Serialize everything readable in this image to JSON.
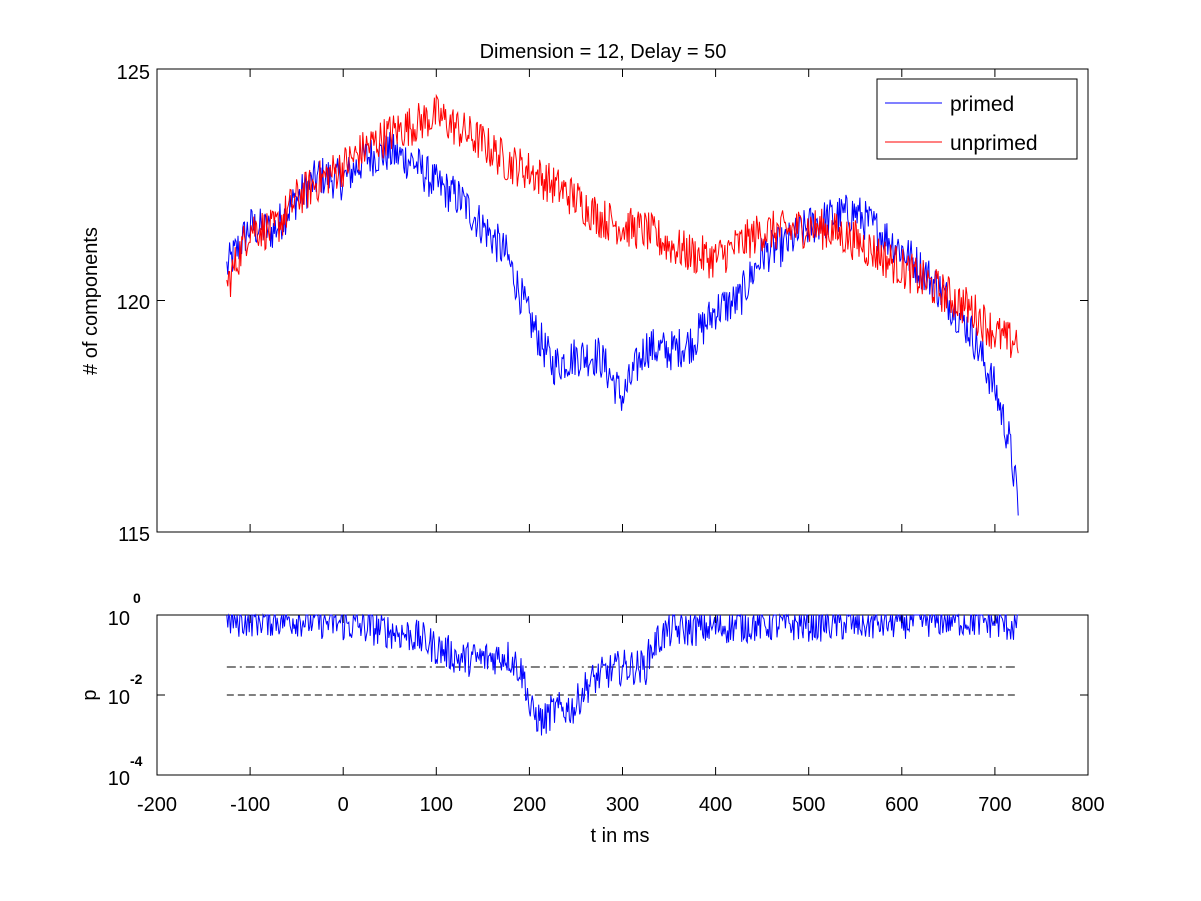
{
  "chart_data": [
    {
      "type": "line",
      "title": "Dimension  = 12, Delay = 50",
      "xlabel": "",
      "ylabel": "# of components",
      "xlim": [
        -200,
        800
      ],
      "ylim": [
        115,
        125
      ],
      "yticks": [
        "125",
        "120",
        "115"
      ],
      "legend": {
        "position": "top-right",
        "entries": [
          "primed",
          "unprimed"
        ]
      },
      "series": [
        {
          "name": "primed",
          "color": "#0000ff",
          "x": [
            -125,
            -100,
            -75,
            -50,
            -25,
            0,
            25,
            50,
            75,
            100,
            125,
            150,
            175,
            200,
            225,
            250,
            275,
            300,
            325,
            350,
            375,
            400,
            425,
            450,
            475,
            500,
            525,
            550,
            575,
            600,
            625,
            650,
            675,
            700,
            715,
            725
          ],
          "y": [
            120.7,
            121.6,
            121.5,
            122.2,
            122.7,
            122.6,
            123.1,
            123.2,
            123.0,
            122.5,
            122.2,
            121.6,
            121.0,
            119.6,
            118.6,
            118.8,
            118.8,
            117.9,
            119.0,
            118.9,
            119.1,
            119.8,
            120.0,
            121.0,
            121.2,
            121.6,
            121.8,
            121.9,
            121.5,
            121.1,
            120.6,
            120.0,
            119.3,
            118.1,
            117.0,
            115.6
          ],
          "noise": 0.45
        },
        {
          "name": "unprimed",
          "color": "#ff0000",
          "x": [
            -125,
            -100,
            -75,
            -50,
            -25,
            0,
            25,
            50,
            75,
            100,
            125,
            150,
            175,
            200,
            225,
            250,
            275,
            300,
            325,
            350,
            375,
            400,
            425,
            450,
            475,
            500,
            525,
            550,
            575,
            600,
            625,
            650,
            675,
            700,
            715,
            725
          ],
          "y": [
            120.3,
            121.6,
            121.5,
            122.2,
            122.6,
            122.9,
            123.3,
            123.6,
            123.8,
            124.0,
            123.7,
            123.4,
            123.0,
            122.8,
            122.5,
            122.2,
            121.8,
            121.6,
            121.5,
            121.2,
            121.0,
            120.9,
            121.2,
            121.5,
            121.5,
            121.6,
            121.5,
            121.3,
            121.0,
            120.7,
            120.4,
            120.1,
            119.8,
            119.3,
            119.1,
            119.2
          ],
          "noise": 0.45
        }
      ]
    },
    {
      "type": "line",
      "xlabel": "t in ms",
      "ylabel": "p",
      "xlim": [
        -200,
        800
      ],
      "xticks": [
        "-200",
        "-100",
        "0",
        "100",
        "200",
        "300",
        "400",
        "500",
        "600",
        "700",
        "800"
      ],
      "yscale": "log",
      "ylim": [
        0.0001,
        1
      ],
      "ytick_base": "10",
      "ytick_exponents": [
        "0",
        "-2",
        "-4"
      ],
      "reference_lines": [
        {
          "style": "dash-dot",
          "value": 0.05,
          "x": [
            -125,
            725
          ]
        },
        {
          "style": "dashed",
          "value": 0.01,
          "x": [
            -125,
            725
          ]
        }
      ],
      "series": [
        {
          "name": "",
          "color": "#0000ff",
          "x": [
            -125,
            -100,
            -50,
            0,
            50,
            75,
            100,
            125,
            150,
            175,
            200,
            215,
            225,
            250,
            275,
            300,
            325,
            350,
            400,
            450,
            500,
            550,
            600,
            650,
            700,
            725
          ],
          "y": [
            0.7,
            0.8,
            0.8,
            0.6,
            0.4,
            0.3,
            0.15,
            0.08,
            0.08,
            0.1,
            0.004,
            0.002,
            0.004,
            0.005,
            0.03,
            0.05,
            0.05,
            0.4,
            0.5,
            0.6,
            0.6,
            0.6,
            0.7,
            0.8,
            0.7,
            0.5
          ],
          "noise": 0.45
        }
      ]
    }
  ]
}
